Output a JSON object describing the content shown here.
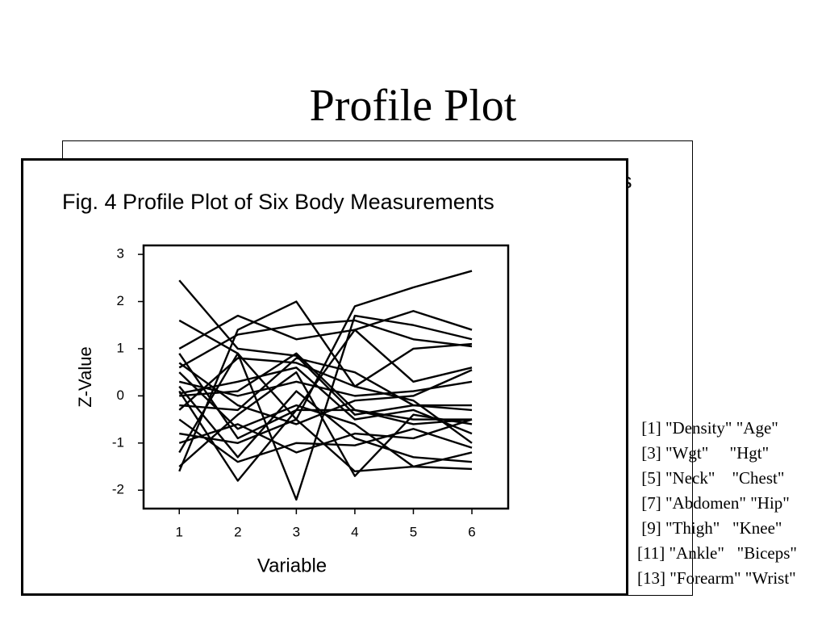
{
  "slide_title": "Profile Plot",
  "back_panel_text": "s",
  "r_output": [
    " [1] \"Density\" \"Age\"",
    " [3] \"Wgt\"     \"Hgt\"",
    " [5] \"Neck\"    \"Chest\"",
    " [7] \"Abdomen\" \"Hip\"",
    " [9] \"Thigh\"   \"Knee\"",
    "[11] \"Ankle\"   \"Biceps\"",
    "[13] \"Forearm\" \"Wrist\""
  ],
  "chart_data": {
    "type": "line",
    "title": "Fig. 4 Profile Plot of Six Body Measurements",
    "x_label": "Variable",
    "y_label": "Z-Value",
    "color": "#000000",
    "x": [
      1,
      2,
      3,
      4,
      5,
      6
    ],
    "xlim": [
      0.39,
      6.62
    ],
    "ylim": [
      -2.39,
      3.19
    ],
    "xticks": [
      1,
      2,
      3,
      4,
      5,
      6
    ],
    "yticks": [
      -2,
      -1,
      0,
      1,
      2,
      3
    ],
    "series": [
      {
        "values": [
          2.45,
          1.0,
          0.85,
          -0.4,
          -0.2,
          -0.3
        ]
      },
      {
        "values": [
          1.6,
          0.9,
          -0.5,
          1.9,
          2.3,
          2.65
        ]
      },
      {
        "values": [
          1.0,
          1.7,
          1.2,
          1.4,
          1.8,
          1.4
        ]
      },
      {
        "values": [
          -1.6,
          1.4,
          2.0,
          0.2,
          1.0,
          1.1
        ]
      },
      {
        "values": [
          0.6,
          1.3,
          1.5,
          1.6,
          1.2,
          1.05
        ]
      },
      {
        "values": [
          -1.2,
          0.9,
          -2.2,
          1.7,
          1.5,
          1.2
        ]
      },
      {
        "values": [
          0.1,
          -1.8,
          -0.3,
          1.4,
          0.3,
          0.6
        ]
      },
      {
        "values": [
          -0.2,
          -0.3,
          0.8,
          0.5,
          -0.2,
          -0.2
        ]
      },
      {
        "values": [
          0.0,
          0.1,
          0.9,
          -0.3,
          -0.5,
          -0.5
        ]
      },
      {
        "values": [
          -0.8,
          -1.0,
          -0.5,
          -1.6,
          -1.5,
          -1.55
        ]
      },
      {
        "values": [
          0.5,
          -0.7,
          -0.2,
          -0.6,
          -1.5,
          -1.2
        ]
      },
      {
        "values": [
          -1.5,
          -0.4,
          0.5,
          -1.7,
          -0.4,
          -0.6
        ]
      },
      {
        "values": [
          0.9,
          -0.9,
          -0.3,
          -0.3,
          -0.6,
          -0.5
        ]
      },
      {
        "values": [
          0.3,
          0.0,
          0.3,
          0.0,
          0.1,
          0.3
        ]
      },
      {
        "values": [
          -0.5,
          -1.4,
          -1.0,
          -1.05,
          -0.7,
          -1.1
        ]
      },
      {
        "values": [
          0.05,
          0.3,
          0.6,
          -0.5,
          -0.3,
          -0.8
        ]
      },
      {
        "values": [
          -1.0,
          -0.6,
          -1.2,
          -0.8,
          -0.9,
          -0.5
        ]
      },
      {
        "values": [
          0.7,
          -0.2,
          -0.6,
          -0.1,
          0.0,
          0.55
        ]
      },
      {
        "values": [
          -0.3,
          0.8,
          0.7,
          0.2,
          -0.1,
          -1.0
        ]
      },
      {
        "values": [
          0.2,
          -1.3,
          0.1,
          -0.9,
          -1.3,
          -1.4
        ]
      }
    ]
  }
}
